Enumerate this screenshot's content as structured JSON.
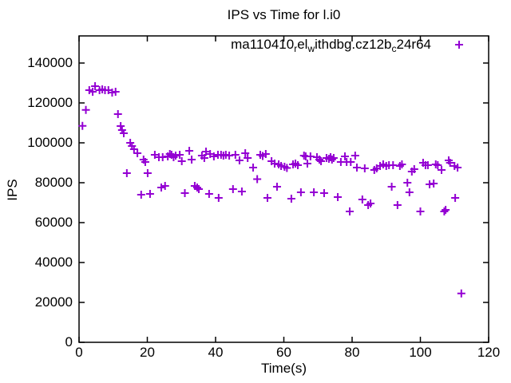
{
  "chart": {
    "title": "IPS vs Time for l.i0",
    "xlabel": "Time(s)",
    "ylabel": "IPS",
    "legend": {
      "label_raw": "ma110410_rel_withdbg.cz12b_c24r64",
      "segments": [
        {
          "text": "ma110410",
          "sub": false
        },
        {
          "text": "r",
          "sub": true
        },
        {
          "text": "el",
          "sub": false
        },
        {
          "text": "w",
          "sub": true
        },
        {
          "text": "ithdbg.cz12b",
          "sub": false
        },
        {
          "text": "c",
          "sub": true
        },
        {
          "text": "24r64",
          "sub": false
        }
      ]
    }
  },
  "colors": {
    "point": "#9400D3",
    "axis": "#000000",
    "text": "#000000",
    "background": "#ffffff"
  },
  "chart_data": {
    "type": "scatter",
    "title": "IPS vs Time for l.i0",
    "xlabel": "Time(s)",
    "ylabel": "IPS",
    "xlim": [
      0,
      120
    ],
    "ylim": [
      0,
      153600
    ],
    "xticks": [
      0,
      20,
      40,
      60,
      80,
      100,
      120
    ],
    "yticks": [
      0,
      20000,
      40000,
      60000,
      80000,
      100000,
      120000,
      140000
    ],
    "grid": false,
    "legend_position": "top-right-inside",
    "marker": "plus",
    "series": [
      {
        "name": "ma110410_rel_withdbg.cz12b_c24r64",
        "color": "#9400D3",
        "points": [
          [
            1,
            108500
          ],
          [
            2,
            116500
          ],
          [
            3,
            126400
          ],
          [
            4,
            125600
          ],
          [
            4.7,
            128400
          ],
          [
            6,
            126400
          ],
          [
            6.8,
            126800
          ],
          [
            7.6,
            126400
          ],
          [
            8.6,
            126400
          ],
          [
            9.7,
            125200
          ],
          [
            10.7,
            125600
          ],
          [
            11.4,
            114400
          ],
          [
            12.2,
            108400
          ],
          [
            12.6,
            106400
          ],
          [
            13.1,
            104800
          ],
          [
            14,
            84800
          ],
          [
            15,
            100000
          ],
          [
            15.5,
            98400
          ],
          [
            16.1,
            96800
          ],
          [
            17.1,
            94800
          ],
          [
            18.2,
            74000
          ],
          [
            18.9,
            91600
          ],
          [
            19.4,
            90400
          ],
          [
            20.1,
            84800
          ],
          [
            20.8,
            74400
          ],
          [
            22.2,
            94000
          ],
          [
            23.4,
            92800
          ],
          [
            24.1,
            77600
          ],
          [
            24.5,
            92800
          ],
          [
            25.2,
            78400
          ],
          [
            26,
            93200
          ],
          [
            26.6,
            94400
          ],
          [
            27.1,
            94000
          ],
          [
            27.7,
            92800
          ],
          [
            28.3,
            93600
          ],
          [
            29.5,
            94000
          ],
          [
            30.1,
            90800
          ],
          [
            31,
            74800
          ],
          [
            32.3,
            96000
          ],
          [
            33,
            91600
          ],
          [
            33.9,
            78400
          ],
          [
            34.6,
            77600
          ],
          [
            35.1,
            76800
          ],
          [
            36,
            93600
          ],
          [
            36.7,
            92400
          ],
          [
            37.2,
            95600
          ],
          [
            38.1,
            74400
          ],
          [
            38.4,
            94400
          ],
          [
            39.5,
            93200
          ],
          [
            40.7,
            94000
          ],
          [
            40.9,
            72400
          ],
          [
            41.6,
            94000
          ],
          [
            42.3,
            93600
          ],
          [
            43,
            94000
          ],
          [
            44,
            93600
          ],
          [
            45.1,
            76800
          ],
          [
            45.8,
            94000
          ],
          [
            47,
            91200
          ],
          [
            47.7,
            75600
          ],
          [
            48.7,
            94800
          ],
          [
            49.4,
            92400
          ],
          [
            51,
            87600
          ],
          [
            52.2,
            81800
          ],
          [
            53.1,
            94000
          ],
          [
            53.8,
            93400
          ],
          [
            54.7,
            94400
          ],
          [
            55.2,
            72400
          ],
          [
            56.4,
            90800
          ],
          [
            57.3,
            89600
          ],
          [
            58,
            78000
          ],
          [
            58.5,
            89200
          ],
          [
            59.2,
            88400
          ],
          [
            60.2,
            88000
          ],
          [
            60.9,
            87400
          ],
          [
            62.2,
            72000
          ],
          [
            62.7,
            89200
          ],
          [
            63.4,
            89600
          ],
          [
            64.1,
            88800
          ],
          [
            65,
            75200
          ],
          [
            65.9,
            93600
          ],
          [
            66.4,
            93200
          ],
          [
            66.9,
            89600
          ],
          [
            67.8,
            93200
          ],
          [
            68.8,
            75200
          ],
          [
            69.7,
            92800
          ],
          [
            70.4,
            91600
          ],
          [
            70.9,
            90800
          ],
          [
            71.8,
            74800
          ],
          [
            72.5,
            92400
          ],
          [
            73.2,
            92000
          ],
          [
            73.7,
            92800
          ],
          [
            74.1,
            91600
          ],
          [
            74.6,
            92400
          ],
          [
            75.8,
            72800
          ],
          [
            76.7,
            90400
          ],
          [
            77.9,
            93200
          ],
          [
            78.4,
            90400
          ],
          [
            79.3,
            65600
          ],
          [
            79.6,
            90400
          ],
          [
            80.9,
            93600
          ],
          [
            81.4,
            87600
          ],
          [
            83,
            71600
          ],
          [
            83.7,
            87200
          ],
          [
            84.7,
            68800
          ],
          [
            85.4,
            69600
          ],
          [
            86.5,
            86400
          ],
          [
            87.2,
            87200
          ],
          [
            88.2,
            88400
          ],
          [
            89.1,
            89200
          ],
          [
            90,
            88400
          ],
          [
            90.8,
            88800
          ],
          [
            91.6,
            78000
          ],
          [
            92,
            88800
          ],
          [
            93.3,
            68800
          ],
          [
            94,
            88400
          ],
          [
            94.6,
            89200
          ],
          [
            96.2,
            80000
          ],
          [
            96.8,
            75200
          ],
          [
            97.5,
            85600
          ],
          [
            98.2,
            86800
          ],
          [
            100,
            65600
          ],
          [
            100.8,
            90000
          ],
          [
            101.5,
            88800
          ],
          [
            102.2,
            88800
          ],
          [
            102.7,
            79200
          ],
          [
            103.9,
            79600
          ],
          [
            104.5,
            89200
          ],
          [
            105.1,
            88800
          ],
          [
            106.2,
            86400
          ],
          [
            107,
            65600
          ],
          [
            107.4,
            66400
          ],
          [
            108.3,
            91200
          ],
          [
            108.7,
            90000
          ],
          [
            110,
            88400
          ],
          [
            110.2,
            72400
          ],
          [
            110.9,
            87600
          ],
          [
            112,
            24500
          ]
        ]
      }
    ]
  }
}
